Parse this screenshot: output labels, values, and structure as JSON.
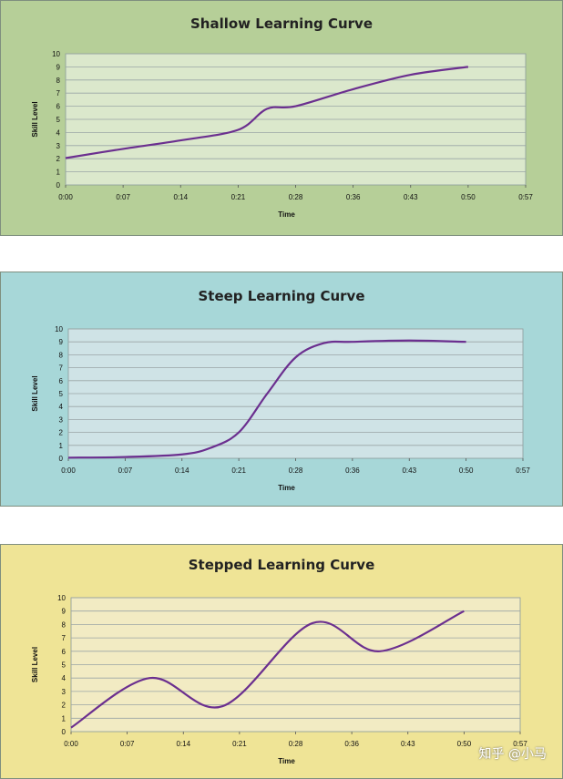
{
  "watermark": "知乎 @小马",
  "chart_data": [
    {
      "type": "line",
      "title": "Shallow Learning Curve",
      "xlabel": "Time",
      "ylabel": "Skill Level",
      "x_ticks": [
        "0:00",
        "0:07",
        "0:14",
        "0:21",
        "0:28",
        "0:36",
        "0:43",
        "0:50",
        "0:57"
      ],
      "y_ticks": [
        "0",
        "1",
        "2",
        "3",
        "4",
        "5",
        "6",
        "7",
        "8",
        "9",
        "10"
      ],
      "ylim": [
        0,
        10
      ],
      "grid": true,
      "colors": {
        "background": "#b6cf98",
        "plot": "#dbe8cc",
        "line": "#6b2f8f"
      },
      "x": [
        0,
        1,
        2,
        3,
        3.5,
        4,
        5,
        6,
        7
      ],
      "y": [
        2.05,
        2.75,
        3.4,
        4.2,
        5.8,
        6.0,
        7.3,
        8.4,
        9.0
      ]
    },
    {
      "type": "line",
      "title": "Steep Learning Curve",
      "xlabel": "Time",
      "ylabel": "Skill Level",
      "x_ticks": [
        "0:00",
        "0:07",
        "0:14",
        "0:21",
        "0:28",
        "0:36",
        "0:43",
        "0:50",
        "0:57"
      ],
      "y_ticks": [
        "0",
        "1",
        "2",
        "3",
        "4",
        "5",
        "6",
        "7",
        "8",
        "9",
        "10"
      ],
      "ylim": [
        0,
        10
      ],
      "grid": true,
      "colors": {
        "background": "#a7d7d8",
        "plot": "#cfe3e6",
        "line": "#6b2f8f"
      },
      "x": [
        0,
        1,
        2,
        2.5,
        3,
        3.5,
        4,
        4.5,
        5,
        6,
        7
      ],
      "y": [
        0.05,
        0.1,
        0.3,
        0.8,
        2.0,
        5.0,
        7.8,
        8.9,
        9.0,
        9.1,
        9.0
      ]
    },
    {
      "type": "line",
      "title": "Stepped Learning Curve",
      "xlabel": "Time",
      "ylabel": "Skill Level",
      "x_ticks": [
        "0:00",
        "0:07",
        "0:14",
        "0:21",
        "0:28",
        "0:36",
        "0:43",
        "0:50",
        "0:57"
      ],
      "y_ticks": [
        "0",
        "1",
        "2",
        "3",
        "4",
        "5",
        "6",
        "7",
        "8",
        "9",
        "10"
      ],
      "ylim": [
        0,
        10
      ],
      "grid": true,
      "colors": {
        "background": "#efe496",
        "plot": "#f2ebc3",
        "line": "#6b2f8f"
      },
      "x": [
        0,
        1.4,
        2.7,
        4.3,
        5.5,
        7
      ],
      "y": [
        0.3,
        4.0,
        1.9,
        8.1,
        6.0,
        9.0
      ]
    }
  ]
}
